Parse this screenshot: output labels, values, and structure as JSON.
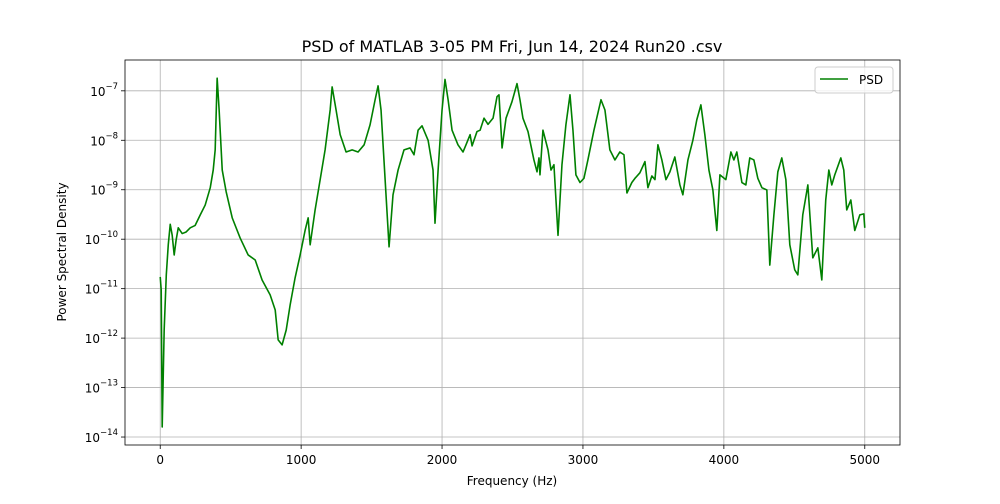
{
  "chart_data": {
    "type": "line",
    "title": "PSD of MATLAB 3-05 PM Fri, Jun 14, 2024 Run20 .csv",
    "xlabel": "Frequency (Hz)",
    "ylabel": "Power Spectral Density",
    "log_y": true,
    "grid": true,
    "legend": "upper right",
    "xlim": [
      -250,
      5250
    ],
    "xticks": [
      0,
      1000,
      2000,
      3000,
      4000,
      5000
    ],
    "ylim": [
      6.9e-15,
      4.2e-07
    ],
    "yticks": [
      {
        "value": 1e-14,
        "label": "10−14"
      },
      {
        "value": 1e-13,
        "label": "10−13"
      },
      {
        "value": 1e-12,
        "label": "10−12"
      },
      {
        "value": 1e-11,
        "label": "10−11"
      },
      {
        "value": 1e-10,
        "label": "10−10"
      },
      {
        "value": 1e-09,
        "label": "10−9"
      },
      {
        "value": 1e-08,
        "label": "10−8"
      },
      {
        "value": 1e-07,
        "label": "10−7"
      }
    ],
    "x": [
      0,
      7,
      14,
      28,
      43,
      57,
      71,
      85,
      99,
      113,
      128,
      156,
      184,
      213,
      248,
      284,
      319,
      355,
      376,
      390,
      404,
      418,
      440,
      468,
      511,
      567,
      624,
      674,
      723,
      780,
      816,
      837,
      865,
      894,
      922,
      957,
      993,
      1028,
      1050,
      1064,
      1099,
      1135,
      1170,
      1206,
      1220,
      1248,
      1277,
      1319,
      1362,
      1404,
      1447,
      1489,
      1525,
      1546,
      1567,
      1596,
      1624,
      1652,
      1688,
      1730,
      1773,
      1801,
      1830,
      1858,
      1901,
      1936,
      1950,
      1972,
      2000,
      2021,
      2043,
      2071,
      2113,
      2149,
      2170,
      2199,
      2213,
      2248,
      2270,
      2298,
      2326,
      2362,
      2390,
      2404,
      2426,
      2454,
      2496,
      2532,
      2553,
      2574,
      2610,
      2652,
      2674,
      2688,
      2695,
      2716,
      2752,
      2773,
      2794,
      2823,
      2851,
      2879,
      2908,
      2929,
      2950,
      2979,
      3007,
      3035,
      3078,
      3128,
      3156,
      3191,
      3227,
      3262,
      3291,
      3312,
      3347,
      3369,
      3404,
      3440,
      3461,
      3489,
      3511,
      3532,
      3560,
      3589,
      3617,
      3652,
      3688,
      3709,
      3745,
      3780,
      3808,
      3837,
      3865,
      3894,
      3922,
      3950,
      3972,
      4014,
      4050,
      4071,
      4092,
      4128,
      4156,
      4184,
      4213,
      4241,
      4270,
      4305,
      4326,
      4355,
      4383,
      4411,
      4440,
      4468,
      4503,
      4525,
      4560,
      4596,
      4631,
      4667,
      4695,
      4723,
      4745,
      4766,
      4787,
      4830,
      4851,
      4872,
      4901,
      4929,
      4965,
      4993,
      5000
    ],
    "series": [
      {
        "name": "PSD",
        "color": "#008000",
        "values": [
          1.73e-11,
          9.4e-12,
          1.6e-14,
          1.46e-12,
          1.9e-11,
          7.7e-11,
          2e-10,
          1.2e-10,
          4.8e-11,
          9.7e-11,
          1.7e-10,
          1.3e-10,
          1.4e-10,
          1.7e-10,
          1.9e-10,
          3.1e-10,
          4.9e-10,
          1.1e-09,
          2.5e-09,
          6.4e-09,
          1.8e-07,
          4.1e-08,
          2.5e-09,
          9.1e-10,
          2.7e-10,
          1.06e-10,
          4.8e-11,
          3.8e-11,
          1.5e-11,
          7.5e-12,
          3.7e-12,
          9.2e-13,
          7.3e-13,
          1.46e-12,
          4.7e-12,
          1.65e-11,
          4.8e-11,
          1.5e-10,
          2.7e-10,
          7.7e-11,
          3.9e-10,
          1.6e-09,
          6.4e-09,
          4.1e-08,
          1.2e-07,
          4.1e-08,
          1.3e-08,
          5.8e-09,
          6.4e-09,
          5.8e-09,
          8.1e-09,
          2.05e-08,
          6.6e-08,
          1.26e-07,
          4.1e-08,
          1.6e-09,
          7e-11,
          7.9e-10,
          2.5e-09,
          6.4e-09,
          7e-09,
          5.1e-09,
          1.6e-08,
          1.96e-08,
          1e-08,
          2.5e-09,
          2.1e-10,
          2.5e-09,
          4.1e-08,
          1.7e-07,
          6.6e-08,
          1.6e-08,
          8.1e-09,
          5.8e-09,
          8.1e-09,
          1.3e-08,
          7.7e-09,
          1.5e-08,
          1.6e-08,
          2.8e-08,
          2.1e-08,
          2.8e-08,
          7.6e-08,
          8.3e-08,
          7e-09,
          2.8e-08,
          6e-08,
          1.4e-07,
          6.6e-08,
          2.8e-08,
          1.5e-08,
          4e-09,
          2.3e-09,
          4.4e-09,
          2e-09,
          1.6e-08,
          6.4e-09,
          2.5e-09,
          3.2e-09,
          1.2e-10,
          3.2e-09,
          2.05e-08,
          8.3e-08,
          1.6e-08,
          2e-09,
          1.4e-09,
          1.7e-09,
          4e-09,
          1.6e-08,
          6.6e-08,
          4.1e-08,
          6.4e-09,
          4e-09,
          5.8e-09,
          5.1e-09,
          8.6e-10,
          1.4e-09,
          1.7e-09,
          2.2e-09,
          3.7e-09,
          1.1e-09,
          1.9e-09,
          1.6e-09,
          8.1e-09,
          4e-09,
          1.6e-09,
          2.3e-09,
          4.6e-09,
          1.25e-09,
          7.9e-10,
          4e-09,
          1e-08,
          2.6e-08,
          5.2e-08,
          1.3e-08,
          2.5e-09,
          9.9e-10,
          1.5e-10,
          2e-09,
          1.6e-09,
          5.8e-09,
          4e-09,
          5.8e-09,
          1.4e-09,
          1.25e-09,
          4.4e-09,
          4e-09,
          1.7e-09,
          1.1e-09,
          9.9e-10,
          3e-11,
          3.1e-10,
          2.3e-09,
          4.4e-09,
          1.6e-09,
          7.7e-11,
          2.4e-11,
          1.9e-11,
          3.1e-10,
          1.25e-09,
          4.2e-11,
          6.7e-11,
          1.5e-11,
          6.2e-10,
          2.5e-09,
          1.25e-09,
          2e-09,
          4.4e-09,
          2.5e-09,
          3.9e-10,
          6.2e-10,
          1.5e-10,
          3.1e-10,
          3.25e-10,
          1.7e-10
        ]
      }
    ]
  }
}
